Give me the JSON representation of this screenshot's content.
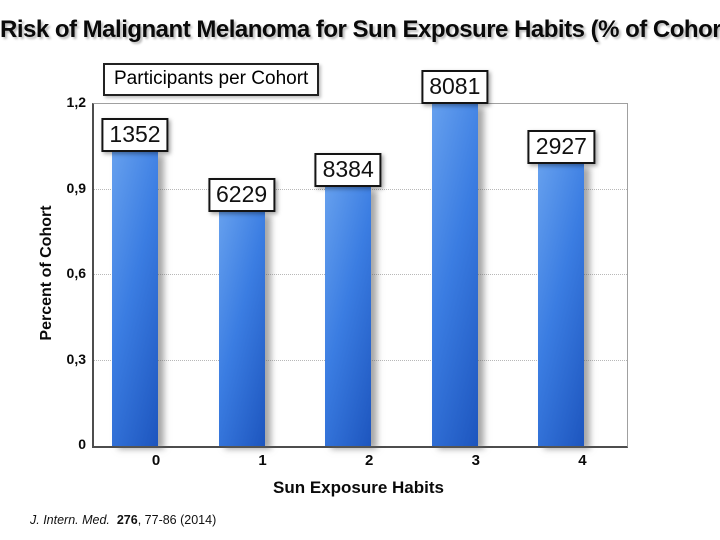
{
  "slide": {
    "title": "Risk of Malignant Melanoma for Sun Exposure Habits (% of Cohort)",
    "citation": {
      "journal": "J. Intern. Med.",
      "volume": "276",
      "pages": ", 77-86 (2014)"
    }
  },
  "legend": {
    "label": "Participants per Cohort"
  },
  "colors": {
    "bar_gradient_light": "#66a0ee",
    "bar_gradient_mid": "#3b7de2",
    "bar_gradient_dark": "#1d55be",
    "axis": "#4d4d4d",
    "frame": "#a0a0a0",
    "gridline": "#b8b8b8",
    "background": "#ffffff",
    "text": "#0a0a0a"
  },
  "chart_data": {
    "type": "bar",
    "title": "Risk of Malignant Melanoma for Sun Exposure Habits (% of Cohort)",
    "categories": [
      "0",
      "1",
      "2",
      "3",
      "4"
    ],
    "values": [
      1.03,
      0.82,
      0.91,
      1.2,
      0.99
    ],
    "bar_labels": [
      "1352",
      "6229",
      "8384",
      "8081",
      "2927"
    ],
    "bar_labels_legend": "Participants per Cohort",
    "xlabel": "Sun Exposure Habits",
    "ylabel": "Percent of Cohort",
    "ylim": [
      0,
      1.2
    ],
    "ytick_values": [
      0,
      0.3,
      0.6,
      0.9,
      1.2
    ],
    "ytick_labels": [
      "0",
      "0,3",
      "0,6",
      "0,9",
      "1,2"
    ],
    "gridline_values": [
      0.3,
      0.6,
      0.9
    ],
    "grid": true,
    "legend_position": "top-left",
    "decimal_separator": ","
  }
}
